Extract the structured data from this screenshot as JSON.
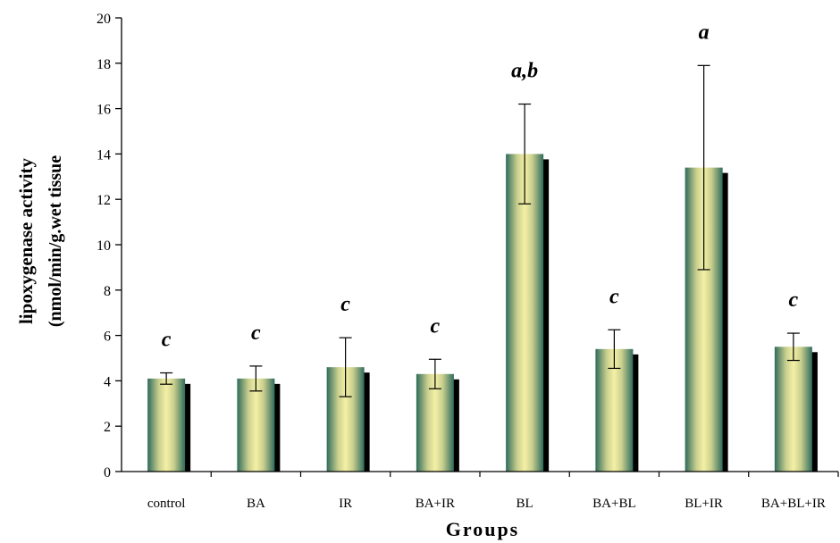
{
  "chart_data": {
    "type": "bar",
    "categories": [
      "control",
      "BA",
      "IR",
      "BA+IR",
      "BL",
      "BA+BL",
      "BL+IR",
      "BA+BL+IR"
    ],
    "values": [
      4.1,
      4.1,
      4.6,
      4.3,
      14.0,
      5.4,
      13.4,
      5.5
    ],
    "errors": [
      0.25,
      0.55,
      1.3,
      0.65,
      2.2,
      0.85,
      4.5,
      0.6
    ],
    "significance": [
      "c",
      "c",
      "c",
      "c",
      "a,b",
      "c",
      "a",
      "c"
    ],
    "xlabel": "Groups",
    "ylabel_line1": "lipoxygenase activity",
    "ylabel_line2": "(nmol/min/g.wet tissue",
    "ylim": [
      0,
      20
    ],
    "yticks": [
      0,
      2,
      4,
      6,
      8,
      10,
      12,
      14,
      16,
      18,
      20
    ],
    "grid": false,
    "bar_colors": {
      "center": "#f4f0a6",
      "edge": "#2f6b5c",
      "shadow": "#000000"
    }
  }
}
